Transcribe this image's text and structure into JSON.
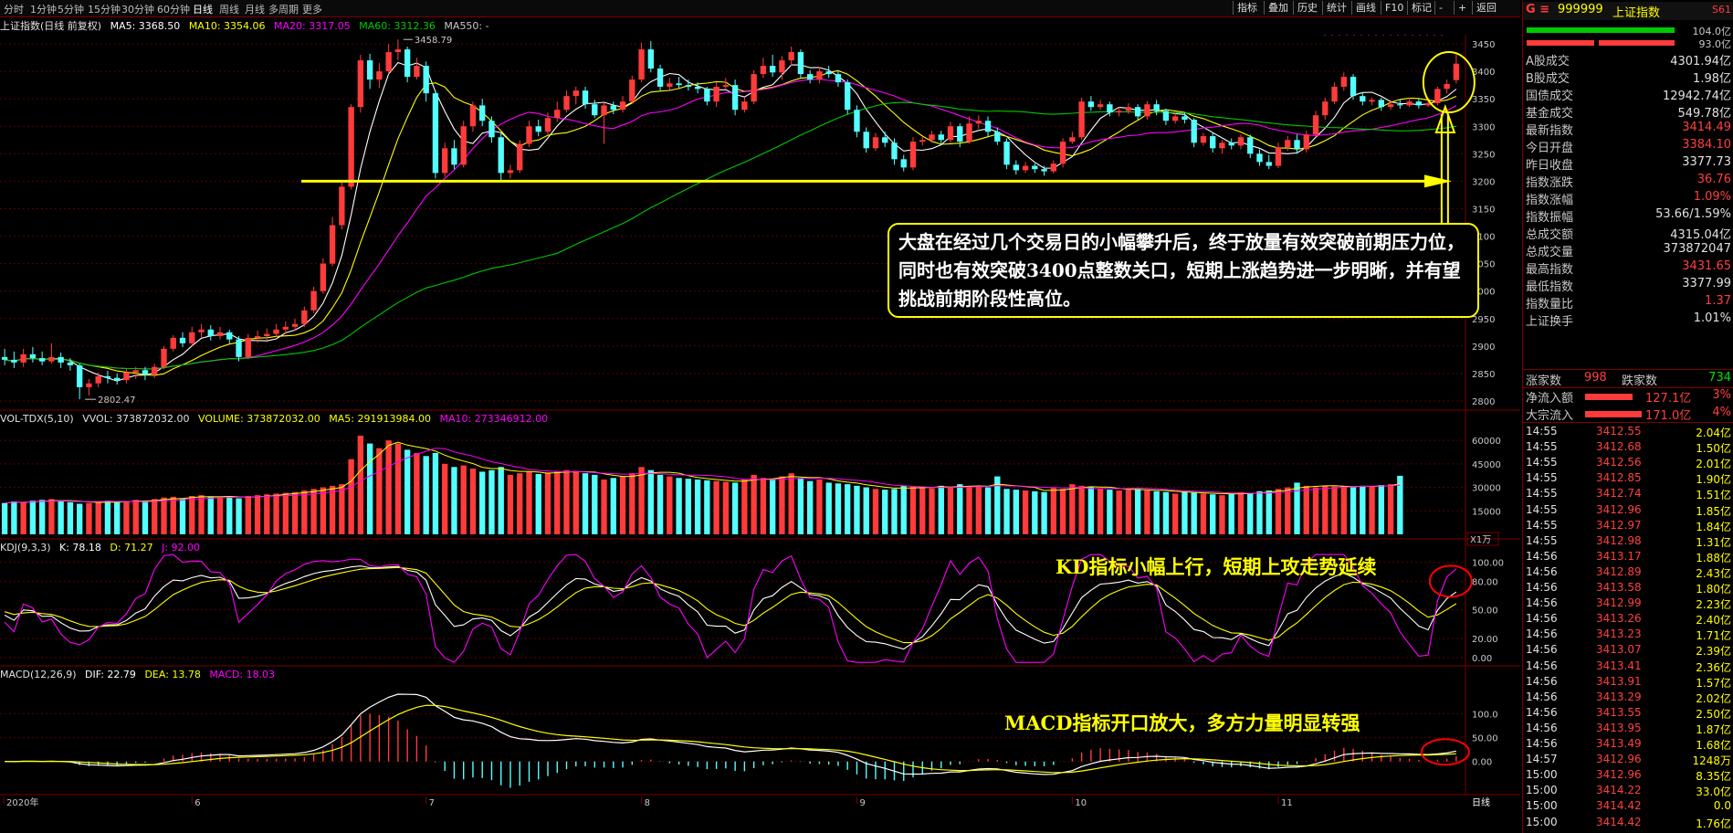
{
  "toolbar": {
    "timeframes": [
      "分时",
      "1分钟",
      "5分钟",
      "15分钟",
      "30分钟",
      "60分钟",
      "日线",
      "周线",
      "月线",
      "多周期",
      "更多"
    ],
    "active": "日线",
    "right_buttons": [
      "指标",
      "叠加",
      "历史",
      "统计",
      "画线",
      "F10",
      "标记",
      "-",
      "+",
      "返回"
    ]
  },
  "info": {
    "title": "上证指数(日线 前复权)",
    "ma5": "MA5: 3368.50",
    "ma10": "MA10: 3354.06",
    "ma20": "MA20: 3317.05",
    "ma60": "MA60: 3312.36",
    "ma550": "MA550: -"
  },
  "vol_info": {
    "name": "VOL-TDX(5,10)",
    "vvol": "VVOL: 373872032.00",
    "volume": "VOLUME: 373872032.00",
    "ma5": "MA5: 291913984.00",
    "ma10": "MA10: 273346912.00"
  },
  "kdj_info": {
    "name": "KDJ(9,3,3)",
    "k": "K: 78.18",
    "d": "D: 71.27",
    "j": "J: 92.00"
  },
  "macd_info": {
    "name": "MACD(12,26,9)",
    "dif": "DIF: 22.79",
    "dea": "DEA: 13.78",
    "macd": "MACD: 18.03"
  },
  "price_axis": [
    "3450",
    "3400",
    "3350",
    "3300",
    "3250",
    "3200",
    "3150",
    "3100",
    "3050",
    "3000",
    "2950",
    "2900",
    "2850",
    "2800"
  ],
  "vol_axis": [
    "60000",
    "45000",
    "30000",
    "15000"
  ],
  "vol_unit": "X1万",
  "kdj_axis": [
    "100.00",
    "80.00",
    "50.00",
    "20.00",
    "0.00"
  ],
  "macd_axis": [
    "100.0",
    "50.00",
    "0.00"
  ],
  "x_labels": [
    "2020年",
    "6",
    "7",
    "8",
    "9",
    "10",
    "11"
  ],
  "period_label": "日线",
  "marks": {
    "high": "3458.79",
    "low": "2802.47"
  },
  "annotations": {
    "main": "大盘在经过几个交易日的小幅攀升后，终于放量有效突破前期压力位，同时也有效突破3400点整数关口，短期上涨趋势进一步明晰，并有望挑战前期阶段性高位。",
    "kd": "KD指标小幅上行，短期上攻走势延续",
    "macd": "MACD指标开口放大，多方力量明显转强"
  },
  "colors": {
    "up": "#ff3b3b",
    "down": "#54ffff",
    "ma5": "#ffffff",
    "ma10": "#ffff00",
    "ma20": "#ff00ff",
    "ma60": "#00c800",
    "support": "#ffff00"
  },
  "quote": {
    "header_code": "999999",
    "header_name": "上证指数",
    "header_extra": "S61",
    "ratio_top": "104.0亿",
    "ratio_bottom": "93.0亿",
    "rows": [
      {
        "label": "A股成交",
        "value": "4301.94亿",
        "color": "#e0e0e0"
      },
      {
        "label": "B股成交",
        "value": "1.98亿",
        "color": "#e0e0e0"
      },
      {
        "label": "国债成交",
        "value": "12942.74亿",
        "color": "#e0e0e0"
      },
      {
        "label": "基金成交",
        "value": "549.78亿",
        "color": "#e0e0e0"
      },
      {
        "label": "最新指数",
        "value": "3414.49",
        "color": "#ff4040"
      },
      {
        "label": "今日开盘",
        "value": "3384.10",
        "color": "#ff4040"
      },
      {
        "label": "昨日收盘",
        "value": "3377.73",
        "color": "#e0e0e0"
      },
      {
        "label": "指数涨跌",
        "value": "36.76",
        "color": "#ff4040"
      },
      {
        "label": "指数涨幅",
        "value": "1.09%",
        "color": "#ff4040"
      },
      {
        "label": "指数振幅",
        "value": "53.66/1.59%",
        "color": "#e0e0e0"
      },
      {
        "label": "总成交额",
        "value": "4315.04亿",
        "color": "#e0e0e0"
      },
      {
        "label": "总成交量",
        "value": "373872047",
        "color": "#e0e0e0"
      },
      {
        "label": "最高指数",
        "value": "3431.65",
        "color": "#ff4040"
      },
      {
        "label": "最低指数",
        "value": "3377.99",
        "color": "#e0e0e0"
      },
      {
        "label": "指数量比",
        "value": "1.37",
        "color": "#ff4040"
      },
      {
        "label": "上证换手",
        "value": "1.01%",
        "color": "#e0e0e0"
      }
    ],
    "breadth": {
      "up_label": "涨家数",
      "up": "998",
      "down_label": "跌家数",
      "down": "734"
    },
    "flow": [
      {
        "label": "净流入额",
        "value": "127.1亿",
        "pct": "3%"
      },
      {
        "label": "大宗流入",
        "value": "171.0亿",
        "pct": "4%"
      }
    ],
    "ticks": [
      {
        "t": "14:55",
        "p": "3412.55",
        "v": "2.04亿"
      },
      {
        "t": "14:55",
        "p": "3412.68",
        "v": "1.50亿"
      },
      {
        "t": "14:55",
        "p": "3412.56",
        "v": "2.01亿"
      },
      {
        "t": "14:55",
        "p": "3412.85",
        "v": "1.90亿"
      },
      {
        "t": "14:55",
        "p": "3412.74",
        "v": "1.51亿"
      },
      {
        "t": "14:55",
        "p": "3412.96",
        "v": "1.85亿"
      },
      {
        "t": "14:55",
        "p": "3412.97",
        "v": "1.84亿"
      },
      {
        "t": "14:55",
        "p": "3412.98",
        "v": "1.31亿"
      },
      {
        "t": "14:56",
        "p": "3413.17",
        "v": "1.88亿"
      },
      {
        "t": "14:56",
        "p": "3412.89",
        "v": "2.43亿"
      },
      {
        "t": "14:56",
        "p": "3413.58",
        "v": "1.80亿"
      },
      {
        "t": "14:56",
        "p": "3412.99",
        "v": "2.23亿"
      },
      {
        "t": "14:56",
        "p": "3413.26",
        "v": "2.40亿"
      },
      {
        "t": "14:56",
        "p": "3413.23",
        "v": "1.71亿"
      },
      {
        "t": "14:56",
        "p": "3413.07",
        "v": "2.39亿"
      },
      {
        "t": "14:56",
        "p": "3413.41",
        "v": "2.36亿"
      },
      {
        "t": "14:56",
        "p": "3413.91",
        "v": "1.57亿"
      },
      {
        "t": "14:56",
        "p": "3413.29",
        "v": "2.02亿"
      },
      {
        "t": "14:56",
        "p": "3413.55",
        "v": "2.50亿"
      },
      {
        "t": "14:56",
        "p": "3413.95",
        "v": "1.87亿"
      },
      {
        "t": "14:56",
        "p": "3413.49",
        "v": "1.68亿"
      },
      {
        "t": "14:57",
        "p": "3412.96",
        "v": "1248万"
      },
      {
        "t": "15:00",
        "p": "3412.96",
        "v": "8.35亿"
      },
      {
        "t": "15:00",
        "p": "3414.22",
        "v": "33.0亿"
      },
      {
        "t": "15:00",
        "p": "3414.42",
        "v": "0.0"
      },
      {
        "t": "15:00",
        "p": "3414.42",
        "v": "1.76亿"
      }
    ]
  },
  "chart_data": {
    "type": "candlestick",
    "title": "上证指数(日线 前复权)",
    "ylim": [
      2790,
      3470
    ],
    "support_level": 3200,
    "candles": [
      [
        2880,
        2875,
        2895,
        2865
      ],
      [
        2875,
        2870,
        2890,
        2860
      ],
      [
        2870,
        2885,
        2895,
        2862
      ],
      [
        2885,
        2878,
        2898,
        2870
      ],
      [
        2878,
        2872,
        2890,
        2865
      ],
      [
        2872,
        2880,
        2905,
        2868
      ],
      [
        2880,
        2870,
        2888,
        2860
      ],
      [
        2870,
        2865,
        2878,
        2855
      ],
      [
        2865,
        2825,
        2868,
        2803
      ],
      [
        2825,
        2832,
        2840,
        2810
      ],
      [
        2832,
        2845,
        2852,
        2825
      ],
      [
        2845,
        2842,
        2855,
        2832
      ],
      [
        2842,
        2838,
        2850,
        2830
      ],
      [
        2838,
        2852,
        2858,
        2832
      ],
      [
        2852,
        2856,
        2862,
        2840
      ],
      [
        2856,
        2848,
        2862,
        2838
      ],
      [
        2848,
        2862,
        2868,
        2842
      ],
      [
        2862,
        2895,
        2900,
        2858
      ],
      [
        2895,
        2915,
        2920,
        2890
      ],
      [
        2915,
        2905,
        2925,
        2898
      ],
      [
        2905,
        2925,
        2935,
        2900
      ],
      [
        2925,
        2930,
        2940,
        2915
      ],
      [
        2930,
        2918,
        2938,
        2910
      ],
      [
        2918,
        2925,
        2935,
        2912
      ],
      [
        2925,
        2912,
        2930,
        2905
      ],
      [
        2912,
        2880,
        2918,
        2872
      ],
      [
        2880,
        2915,
        2922,
        2876
      ],
      [
        2915,
        2918,
        2928,
        2906
      ],
      [
        2918,
        2922,
        2932,
        2910
      ],
      [
        2922,
        2930,
        2940,
        2916
      ],
      [
        2930,
        2935,
        2945,
        2922
      ],
      [
        2935,
        2940,
        2950,
        2928
      ],
      [
        2940,
        2965,
        2972,
        2935
      ],
      [
        2965,
        3000,
        3008,
        2960
      ],
      [
        3000,
        3050,
        3060,
        2995
      ],
      [
        3050,
        3120,
        3135,
        3045
      ],
      [
        3120,
        3190,
        3200,
        3112
      ],
      [
        3190,
        3335,
        3340,
        3185
      ],
      [
        3335,
        3420,
        3430,
        3325
      ],
      [
        3420,
        3385,
        3432,
        3368
      ],
      [
        3385,
        3400,
        3415,
        3370
      ],
      [
        3400,
        3435,
        3450,
        3395
      ],
      [
        3435,
        3440,
        3458,
        3420
      ],
      [
        3440,
        3390,
        3445,
        3380
      ],
      [
        3390,
        3410,
        3425,
        3385
      ],
      [
        3410,
        3360,
        3418,
        3345
      ],
      [
        3360,
        3215,
        3365,
        3205
      ],
      [
        3215,
        3260,
        3270,
        3208
      ],
      [
        3260,
        3230,
        3275,
        3222
      ],
      [
        3230,
        3300,
        3310,
        3225
      ],
      [
        3300,
        3338,
        3345,
        3290
      ],
      [
        3338,
        3310,
        3350,
        3300
      ],
      [
        3310,
        3280,
        3318,
        3270
      ],
      [
        3280,
        3215,
        3290,
        3200
      ],
      [
        3215,
        3220,
        3230,
        3205
      ],
      [
        3220,
        3268,
        3275,
        3215
      ],
      [
        3268,
        3300,
        3310,
        3262
      ],
      [
        3300,
        3290,
        3312,
        3282
      ],
      [
        3290,
        3315,
        3325,
        3285
      ],
      [
        3315,
        3330,
        3345,
        3308
      ],
      [
        3330,
        3355,
        3365,
        3325
      ],
      [
        3355,
        3365,
        3372,
        3340
      ],
      [
        3365,
        3340,
        3372,
        3332
      ],
      [
        3340,
        3320,
        3348,
        3315
      ],
      [
        3320,
        3338,
        3342,
        3268
      ],
      [
        3338,
        3330,
        3345,
        3322
      ],
      [
        3330,
        3345,
        3355,
        3325
      ],
      [
        3345,
        3385,
        3392,
        3340
      ],
      [
        3385,
        3440,
        3452,
        3380
      ],
      [
        3440,
        3405,
        3455,
        3398
      ],
      [
        3405,
        3372,
        3412,
        3365
      ],
      [
        3372,
        3378,
        3388,
        3366
      ],
      [
        3378,
        3375,
        3390,
        3368
      ],
      [
        3375,
        3372,
        3385,
        3365
      ],
      [
        3372,
        3368,
        3380,
        3360
      ],
      [
        3368,
        3345,
        3372,
        3338
      ],
      [
        3345,
        3372,
        3380,
        3335
      ],
      [
        3372,
        3375,
        3388,
        3368
      ],
      [
        3375,
        3330,
        3385,
        3320
      ],
      [
        3330,
        3345,
        3352,
        3325
      ],
      [
        3345,
        3395,
        3402,
        3340
      ],
      [
        3395,
        3410,
        3425,
        3388
      ],
      [
        3410,
        3398,
        3430,
        3390
      ],
      [
        3398,
        3420,
        3428,
        3385
      ],
      [
        3420,
        3435,
        3445,
        3410
      ],
      [
        3435,
        3395,
        3440,
        3388
      ],
      [
        3395,
        3385,
        3402,
        3378
      ],
      [
        3385,
        3400,
        3408,
        3378
      ],
      [
        3400,
        3395,
        3410,
        3388
      ],
      [
        3395,
        3380,
        3402,
        3372
      ],
      [
        3380,
        3330,
        3385,
        3322
      ],
      [
        3330,
        3290,
        3338,
        3280
      ],
      [
        3290,
        3260,
        3298,
        3252
      ],
      [
        3260,
        3280,
        3288,
        3255
      ],
      [
        3280,
        3270,
        3290,
        3262
      ],
      [
        3270,
        3240,
        3278,
        3230
      ],
      [
        3240,
        3225,
        3248,
        3218
      ],
      [
        3225,
        3272,
        3280,
        3220
      ],
      [
        3272,
        3275,
        3282,
        3265
      ],
      [
        3275,
        3285,
        3292,
        3270
      ],
      [
        3285,
        3275,
        3292,
        3268
      ],
      [
        3275,
        3300,
        3308,
        3270
      ],
      [
        3300,
        3272,
        3305,
        3262
      ],
      [
        3272,
        3305,
        3318,
        3268
      ],
      [
        3305,
        3310,
        3320,
        3295
      ],
      [
        3310,
        3290,
        3318,
        3282
      ],
      [
        3290,
        3272,
        3298,
        3266
      ],
      [
        3272,
        3230,
        3278,
        3222
      ],
      [
        3230,
        3220,
        3238,
        3212
      ],
      [
        3220,
        3228,
        3235,
        3215
      ],
      [
        3228,
        3222,
        3232,
        3215
      ],
      [
        3222,
        3218,
        3228,
        3210
      ],
      [
        3218,
        3232,
        3238,
        3214
      ],
      [
        3232,
        3272,
        3278,
        3225
      ],
      [
        3272,
        3280,
        3290,
        3268
      ],
      [
        3280,
        3345,
        3352,
        3275
      ],
      [
        3345,
        3335,
        3355,
        3328
      ],
      [
        3335,
        3340,
        3348,
        3330
      ],
      [
        3340,
        3325,
        3345,
        3318
      ],
      [
        3325,
        3328,
        3335,
        3318
      ],
      [
        3328,
        3335,
        3342,
        3322
      ],
      [
        3335,
        3318,
        3340,
        3312
      ],
      [
        3318,
        3340,
        3346,
        3312
      ],
      [
        3340,
        3328,
        3348,
        3320
      ],
      [
        3328,
        3310,
        3332,
        3302
      ],
      [
        3310,
        3318,
        3325,
        3305
      ],
      [
        3318,
        3312,
        3325,
        3305
      ],
      [
        3312,
        3270,
        3315,
        3262
      ],
      [
        3270,
        3282,
        3288,
        3265
      ],
      [
        3282,
        3260,
        3288,
        3252
      ],
      [
        3260,
        3270,
        3275,
        3250
      ],
      [
        3270,
        3265,
        3278,
        3258
      ],
      [
        3265,
        3280,
        3285,
        3258
      ],
      [
        3280,
        3250,
        3285,
        3242
      ],
      [
        3250,
        3235,
        3258,
        3228
      ],
      [
        3235,
        3228,
        3248,
        3222
      ],
      [
        3228,
        3262,
        3270,
        3224
      ],
      [
        3262,
        3275,
        3282,
        3255
      ],
      [
        3275,
        3258,
        3285,
        3250
      ],
      [
        3258,
        3285,
        3292,
        3252
      ],
      [
        3285,
        3320,
        3328,
        3280
      ],
      [
        3320,
        3345,
        3352,
        3312
      ],
      [
        3345,
        3372,
        3380,
        3340
      ],
      [
        3372,
        3390,
        3398,
        3365
      ],
      [
        3390,
        3355,
        3395,
        3348
      ],
      [
        3355,
        3345,
        3362,
        3338
      ],
      [
        3345,
        3348,
        3352,
        3338
      ],
      [
        3348,
        3335,
        3352,
        3328
      ],
      [
        3335,
        3340,
        3348,
        3330
      ],
      [
        3340,
        3338,
        3350,
        3332
      ],
      [
        3338,
        3345,
        3352,
        3335
      ],
      [
        3345,
        3338,
        3350,
        3332
      ],
      [
        3338,
        3342,
        3348,
        3335
      ],
      [
        3342,
        3368,
        3372,
        3338
      ],
      [
        3368,
        3377,
        3385,
        3360
      ],
      [
        3384,
        3414,
        3432,
        3378
      ]
    ],
    "volumes": [
      20000,
      21000,
      20500,
      21500,
      22000,
      22500,
      21000,
      20500,
      19500,
      20000,
      21000,
      21500,
      20500,
      21000,
      22000,
      21500,
      22500,
      23500,
      24000,
      23000,
      24500,
      25000,
      24000,
      23500,
      24000,
      23000,
      24500,
      25000,
      25500,
      26000,
      26500,
      27000,
      28000,
      29000,
      30000,
      31000,
      32000,
      48000,
      63000,
      58000,
      55000,
      60000,
      58000,
      54000,
      52000,
      50000,
      52000,
      45000,
      43000,
      44000,
      42000,
      40000,
      41000,
      43000,
      38000,
      39000,
      40000,
      38500,
      39500,
      40000,
      41000,
      40500,
      39000,
      38000,
      35000,
      36000,
      37000,
      39000,
      43000,
      41000,
      38000,
      37000,
      36000,
      35500,
      35000,
      34500,
      34000,
      33500,
      33000,
      35000,
      38000,
      36000,
      35000,
      37000,
      39000,
      36000,
      34000,
      35000,
      33000,
      32500,
      32000,
      31000,
      30000,
      29000,
      28500,
      29000,
      31000,
      30500,
      30000,
      29500,
      31000,
      30000,
      32000,
      31000,
      30500,
      30000,
      37000,
      29000,
      28500,
      28000,
      27500,
      27000,
      30000,
      29000,
      32000,
      31000,
      30000,
      29000,
      28500,
      28000,
      28500,
      29000,
      28000,
      27500,
      27000,
      26000,
      27000,
      26500,
      26000,
      25500,
      25000,
      26000,
      27000,
      26500,
      27500,
      28000,
      29000,
      30000,
      33000,
      31000,
      30000,
      31000,
      30500,
      31000,
      30000,
      31000,
      30500,
      31500,
      32000,
      37387
    ]
  }
}
